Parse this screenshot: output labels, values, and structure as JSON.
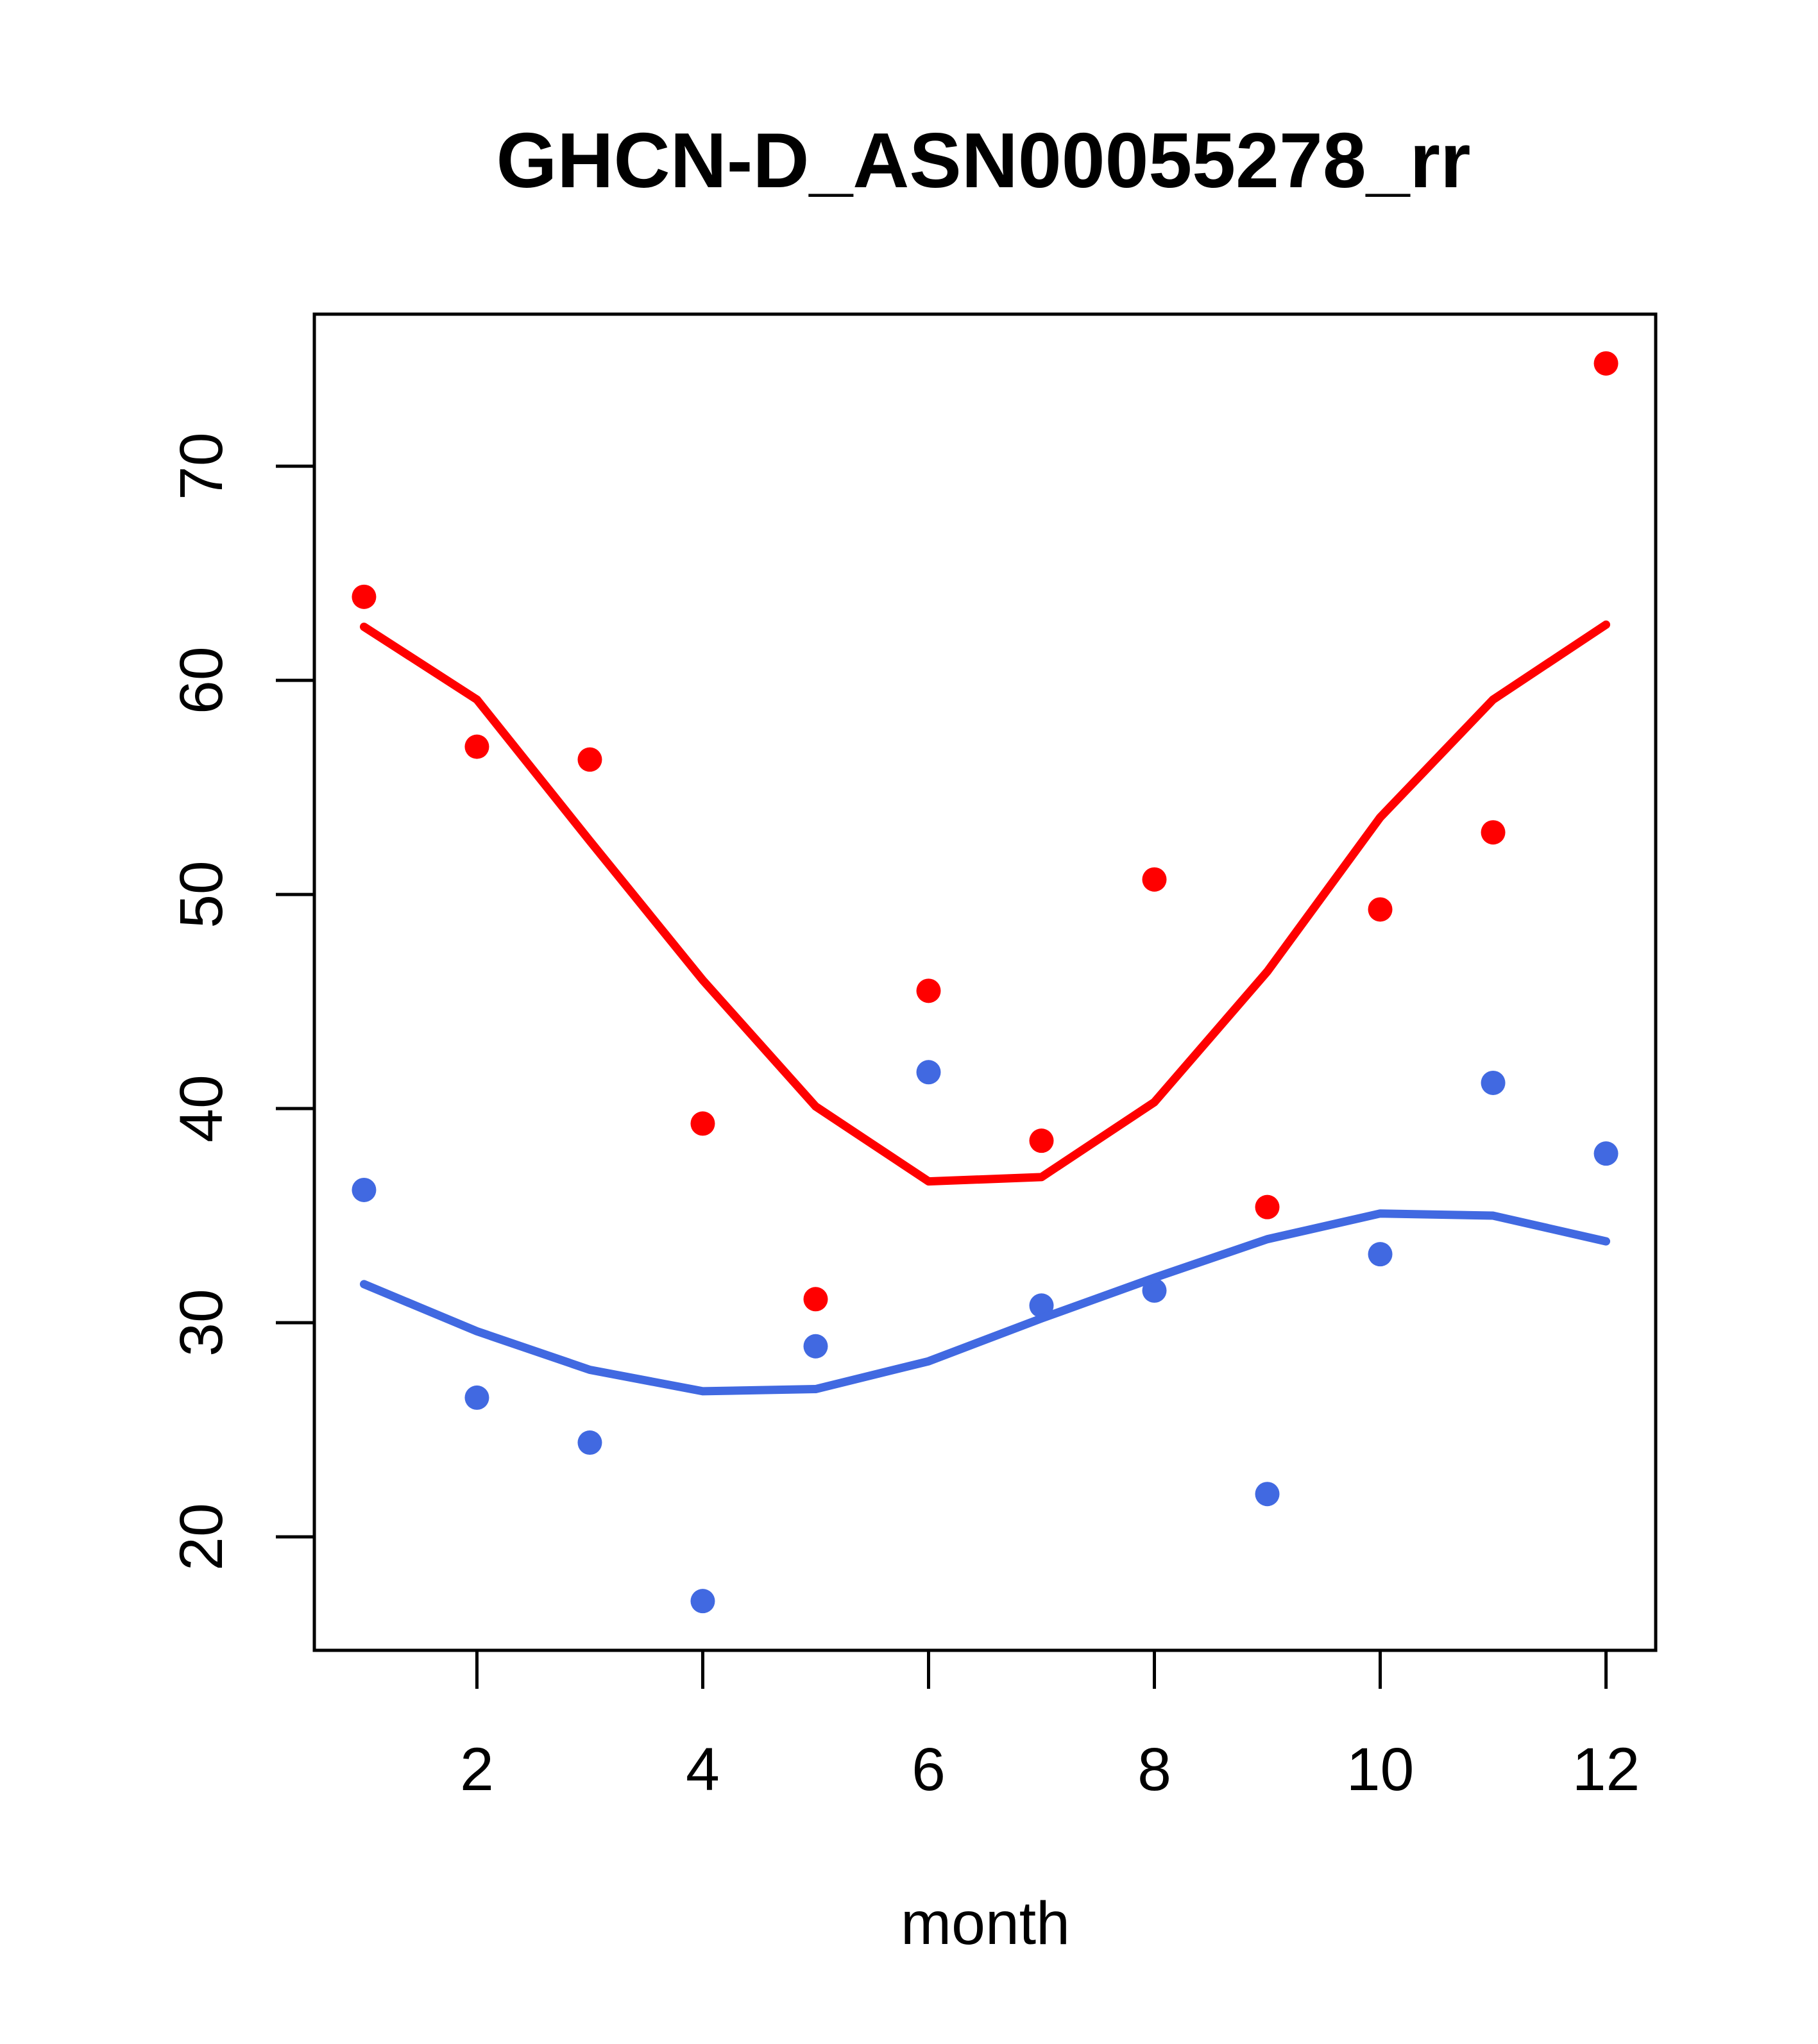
{
  "title": "GHCN-D_ASN00055278_rr",
  "x_axis_label": "month",
  "colors": {
    "red_series": "#FF0000",
    "blue_series": "#4169E1",
    "axis": "#000000",
    "background": "#FFFFFF"
  },
  "chart_data": {
    "type": "scatter",
    "title": "GHCN-D_ASN00055278_rr",
    "xlabel": "month",
    "ylabel": "",
    "x": [
      1,
      2,
      3,
      4,
      5,
      6,
      7,
      8,
      9,
      10,
      11,
      12
    ],
    "x_tick_labels": [
      "2",
      "4",
      "6",
      "8",
      "10",
      "12"
    ],
    "x_tick_values": [
      2,
      4,
      6,
      8,
      10,
      12
    ],
    "y_tick_labels": [
      "20",
      "30",
      "40",
      "50",
      "60",
      "70"
    ],
    "y_tick_values": [
      20,
      30,
      40,
      50,
      60,
      70
    ],
    "xlim": [
      0.56,
      12.44
    ],
    "ylim": [
      14.7,
      77.1
    ],
    "grid": false,
    "legend": "none",
    "series": [
      {
        "name": "red-monthly-points",
        "kind": "points",
        "color": "#FF0000",
        "values": [
          63.9,
          56.9,
          56.3,
          39.3,
          31.1,
          45.5,
          38.5,
          50.7,
          35.4,
          49.3,
          52.9,
          74.8
        ]
      },
      {
        "name": "red-smooth-line",
        "kind": "line",
        "color": "#FF0000",
        "values": [
          62.5,
          59.1,
          52.5,
          46.0,
          40.1,
          36.6,
          36.8,
          40.3,
          46.4,
          53.6,
          59.1,
          62.6
        ]
      },
      {
        "name": "blue-monthly-points",
        "kind": "points",
        "color": "#4169E1",
        "values": [
          36.2,
          26.5,
          24.4,
          17.0,
          28.9,
          41.7,
          30.8,
          31.5,
          22.0,
          33.2,
          41.2,
          37.9
        ]
      },
      {
        "name": "blue-smooth-line",
        "kind": "line",
        "color": "#4169E1",
        "values": [
          31.8,
          29.6,
          27.8,
          26.8,
          26.9,
          28.2,
          30.2,
          32.1,
          33.9,
          35.1,
          35.0,
          33.8
        ]
      }
    ]
  }
}
